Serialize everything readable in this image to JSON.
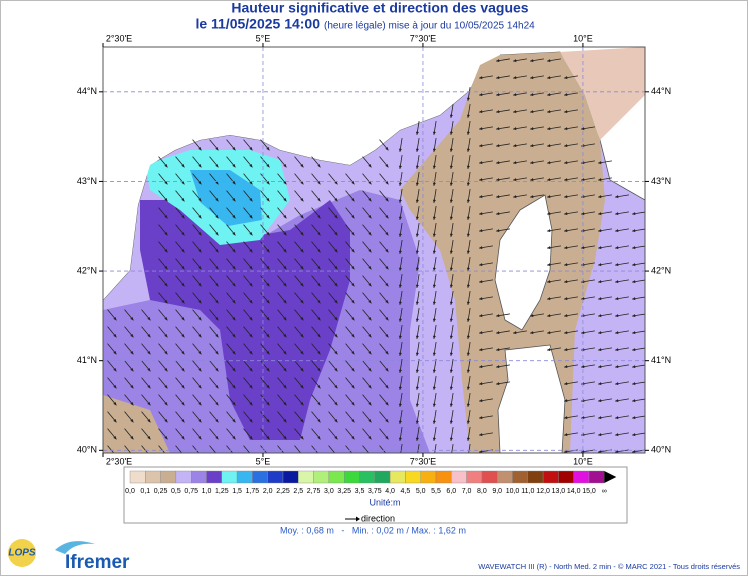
{
  "header": {
    "title": "Hauteur significative et direction des vagues",
    "date": "le 11/05/2025 14:00",
    "update": "(heure légale) mise à jour du 10/05/2025 14h24"
  },
  "map": {
    "lonlim": [
      2.5,
      10.97
    ],
    "latlim": [
      39.97,
      44.5
    ],
    "lon_ticks": [
      {
        "value": 2.5,
        "label": "2°30'E"
      },
      {
        "value": 5,
        "label": "5°E"
      },
      {
        "value": 7.5,
        "label": "7°30'E"
      },
      {
        "value": 10,
        "label": "10°E"
      }
    ],
    "lat_ticks": [
      {
        "value": 44,
        "label": "44°N"
      },
      {
        "value": 43,
        "label": "43°N"
      },
      {
        "value": 42,
        "label": "42°N"
      },
      {
        "value": 41,
        "label": "41°N"
      },
      {
        "value": 40,
        "label": "40°N"
      }
    ]
  },
  "colorbar": {
    "labels": [
      "0,0",
      "0,1",
      "0,25",
      "0,5",
      "0,75",
      "1,0",
      "1,25",
      "1,5",
      "1,75",
      "2,0",
      "2,25",
      "2,5",
      "2,75",
      "3,0",
      "3,25",
      "3,5",
      "3,75",
      "4,0",
      "4,5",
      "5,0",
      "5,5",
      "6,0",
      "7,0",
      "8,0",
      "9,0",
      "10,0",
      "11,0",
      "12,0",
      "13,0",
      "14,0",
      "15,0",
      "∞"
    ],
    "colors": [
      "#f0dccb",
      "#dcc3ac",
      "#c9ae91",
      "#c5b4f5",
      "#9c84e6",
      "#6a40c8",
      "#6ef2f2",
      "#38b6f0",
      "#2a70e0",
      "#1e3cc8",
      "#0a1aa0",
      "#d8f5a8",
      "#b0f07a",
      "#7ce850",
      "#3cd83c",
      "#28c060",
      "#20a860",
      "#e8e860",
      "#f8d820",
      "#f8b010",
      "#f89010",
      "#f8c0c8",
      "#f08080",
      "#e05050",
      "#c09070",
      "#a06030",
      "#804010",
      "#c01010",
      "#a00000",
      "#e010e0",
      "#a01090"
    ],
    "unit": "Unité:m"
  },
  "legend": {
    "direction": "direction"
  },
  "stats": "Moy. : 0,68 m   -   Min. : 0,02 m / Max. : 1,62 m",
  "footer": "WAVEWATCH III (R) - North Med. 2 min - © MARC 2021 - Tous droits réservés",
  "logos": [
    "LOPS",
    "Ifremer"
  ]
}
